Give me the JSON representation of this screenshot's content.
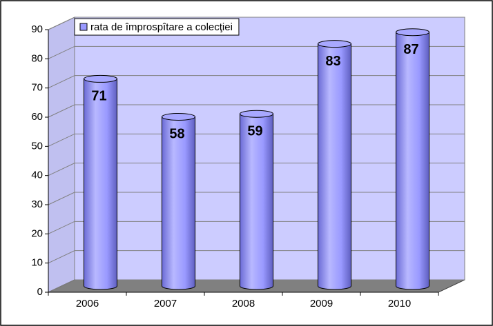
{
  "chart_data": {
    "type": "bar3d",
    "categories": [
      "2006",
      "2007",
      "2008",
      "2009",
      "2010"
    ],
    "series": [
      {
        "name": "rata de împrospîtare a colecţiei",
        "color": "#9999ff",
        "values": [
          71,
          58,
          59,
          83,
          87
        ]
      }
    ],
    "ylim": [
      0,
      90
    ],
    "yticks": [
      0,
      10,
      20,
      30,
      40,
      50,
      60,
      70,
      80,
      90
    ],
    "grid": true,
    "legend": "top-left"
  }
}
